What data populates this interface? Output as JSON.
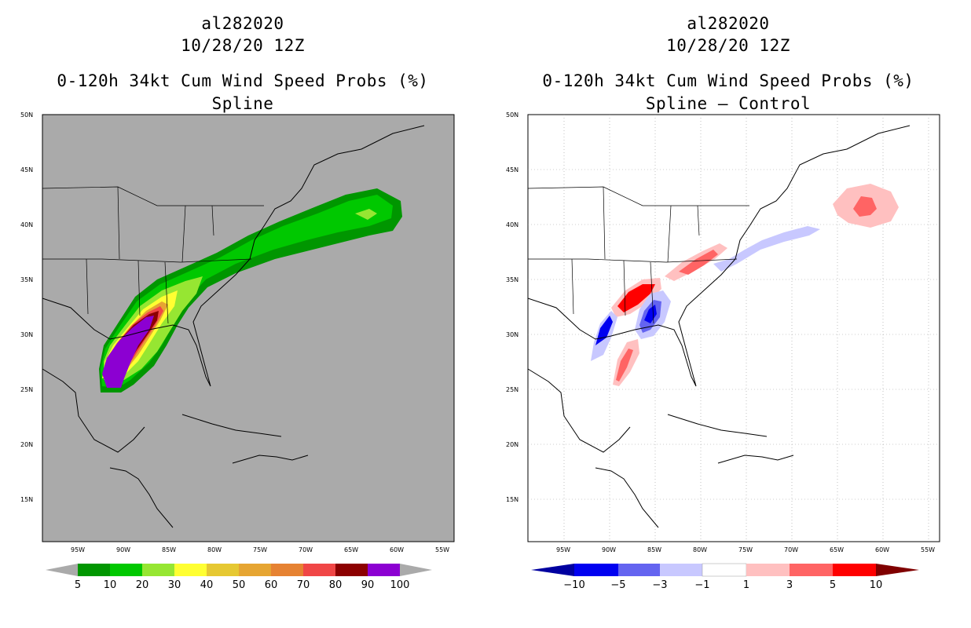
{
  "panels": [
    {
      "storm_id": "al282020",
      "datetime": "10/28/20 12Z",
      "product": "0-120h 34kt Cum Wind Speed Probs (%)",
      "scheme": "Spline",
      "background_color": "#aaaaaa",
      "colorbar": {
        "labels": [
          "5",
          "10",
          "20",
          "30",
          "40",
          "50",
          "60",
          "70",
          "80",
          "90",
          "100"
        ],
        "colors": [
          "#009600",
          "#00c800",
          "#96e632",
          "#ffff32",
          "#e6c832",
          "#e6a532",
          "#e68232",
          "#f04646",
          "#8c0000",
          "#8c00d2"
        ]
      }
    },
    {
      "storm_id": "al282020",
      "datetime": "10/28/20 12Z",
      "product": "0-120h 34kt Cum Wind Speed Probs (%)",
      "scheme": "Spline – Control",
      "background_color": "#ffffff",
      "colorbar": {
        "labels": [
          "−10",
          "−5",
          "−3",
          "−1",
          "1",
          "3",
          "5",
          "10"
        ],
        "colors": [
          "#0000a0",
          "#0000f0",
          "#6464f0",
          "#c8c8ff",
          "#ffffff",
          "#ffc0c0",
          "#ff6464",
          "#ff0000"
        ],
        "low_arrow": "#0000a0",
        "high_arrow": "#800000"
      }
    }
  ],
  "axes": {
    "lat_labels": [
      "50N",
      "45N",
      "40N",
      "35N",
      "30N",
      "25N",
      "20N",
      "15N"
    ],
    "lon_labels": [
      "95W",
      "90W",
      "85W",
      "80W",
      "75W",
      "70W",
      "65W",
      "60W",
      "55W"
    ],
    "lon_range": [
      -100,
      -55
    ],
    "lat_range": [
      11,
      50
    ]
  }
}
